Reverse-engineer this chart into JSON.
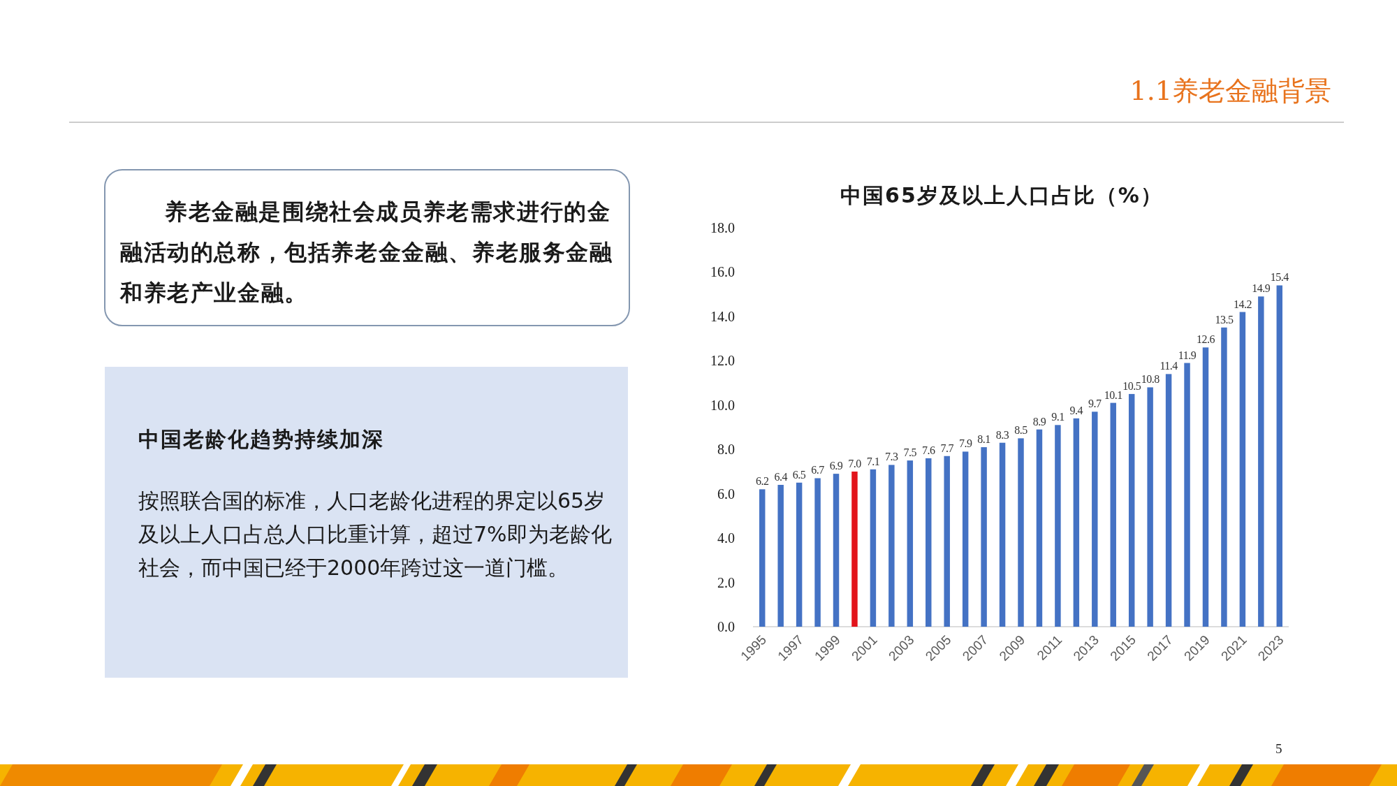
{
  "chart_data": [
    {
      "type": "other",
      "title": "1.1养老金融背景",
      "annotations": [
        "5"
      ]
    },
    {
      "type": "other",
      "annotations": [
        "养老金融是围绕社会成员养老需求进行的金融活动的总称，包括养老金金融、养老服务金融和养老产业金融。"
      ]
    },
    {
      "type": "other",
      "title": "中国老龄化趋势持续加深",
      "annotations": [
        "按照联合国的标准，人口老龄化进程的界定以65岁及以上人口占总人口比重计算，超过7%即为老龄化社会，而中国已经于2000年跨过这一道门槛。"
      ]
    },
    {
      "type": "bar",
      "title": "中国65岁及以上人口占比（%）",
      "categories": [
        "1995",
        null,
        "1997",
        null,
        "1999",
        null,
        "2001",
        null,
        "2003",
        null,
        "2005",
        null,
        "2007",
        null,
        "2009",
        null,
        "2011",
        null,
        "2013",
        null,
        "2015",
        null,
        "2017",
        null,
        "2019",
        null,
        "2021",
        null,
        "2023"
      ],
      "values": [
        6.2,
        6.4,
        6.5,
        6.7,
        6.9,
        7.0,
        7.1,
        7.3,
        7.5,
        7.6,
        7.7,
        7.9,
        8.1,
        8.3,
        8.5,
        8.9,
        9.1,
        9.4,
        9.7,
        10.1,
        10.5,
        10.8,
        11.4,
        11.9,
        12.6,
        13.5,
        14.2,
        14.9,
        15.4
      ],
      "value_labels": [
        "6.2",
        "6.4",
        "6.5",
        "6.7",
        "6.9",
        "7.0",
        "7.1",
        "7.3",
        "7.5",
        "7.6",
        "7.7",
        "7.9",
        "8.1",
        "8.3",
        "8.5",
        "8.9",
        "9.1",
        "9.4",
        "9.7",
        "10.1",
        "10.5",
        "10.8",
        "11.4",
        "11.9",
        "12.6",
        "13.5",
        "14.2",
        "14.9",
        "15.4"
      ],
      "colors": [
        "#4472c4",
        "#4472c4",
        "#4472c4",
        "#4472c4",
        "#4472c4",
        "#e2141b",
        "#4472c4",
        "#4472c4",
        "#4472c4",
        "#4472c4",
        "#4472c4",
        "#4472c4",
        "#4472c4",
        "#4472c4",
        "#4472c4",
        "#4472c4",
        "#4472c4",
        "#4472c4",
        "#4472c4",
        "#4472c4",
        "#4472c4",
        "#4472c4",
        "#4472c4",
        "#4472c4",
        "#4472c4",
        "#4472c4",
        "#4472c4",
        "#4472c4",
        "#4472c4"
      ],
      "ylim": [
        0,
        18
      ],
      "yticks": [
        {
          "value": 0,
          "label": "0.0"
        },
        {
          "value": 2,
          "label": "2.0"
        },
        {
          "value": 4,
          "label": "4.0"
        },
        {
          "value": 6,
          "label": "6.0"
        },
        {
          "value": 8,
          "label": "8.0"
        },
        {
          "value": 10,
          "label": "10.0"
        },
        {
          "value": 12,
          "label": "12.0"
        },
        {
          "value": 14,
          "label": "14.0"
        },
        {
          "value": 16,
          "label": "16.0"
        },
        {
          "value": 18,
          "label": "18.0"
        }
      ]
    }
  ]
}
